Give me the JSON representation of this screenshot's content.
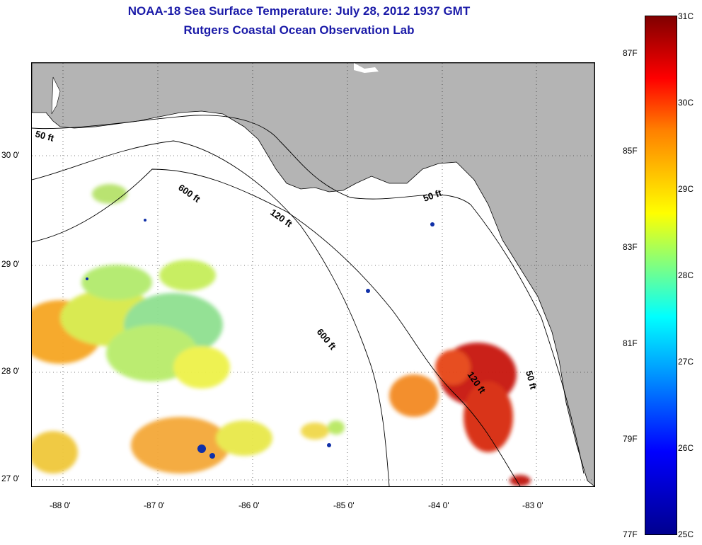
{
  "header": {
    "title": "NOAA-18 Sea Surface Temperature:  July 28, 2012 1937 GMT",
    "subtitle": "Rutgers Coastal Ocean Observation Lab"
  },
  "map": {
    "lat_labels": [
      "30 0'",
      "29 0'",
      "28 0'",
      "27 0'"
    ],
    "lon_labels": [
      "-88 0'",
      "-87 0'",
      "-86 0'",
      "-85 0'",
      "-84 0'",
      "-83 0'"
    ],
    "depth_labels": [
      "50 ft",
      "600 ft",
      "120 ft",
      "50 ft",
      "600 ft",
      "120 ft",
      "50 ft"
    ],
    "colors": {
      "land": "#b4b4b4",
      "ocean": "#ffffff"
    }
  },
  "colorbar": {
    "celsius": [
      "31C",
      "30C",
      "29C",
      "28C",
      "27C",
      "26C",
      "25C"
    ],
    "fahrenheit": [
      "87F",
      "85F",
      "83F",
      "81F",
      "79F",
      "77F"
    ]
  }
}
